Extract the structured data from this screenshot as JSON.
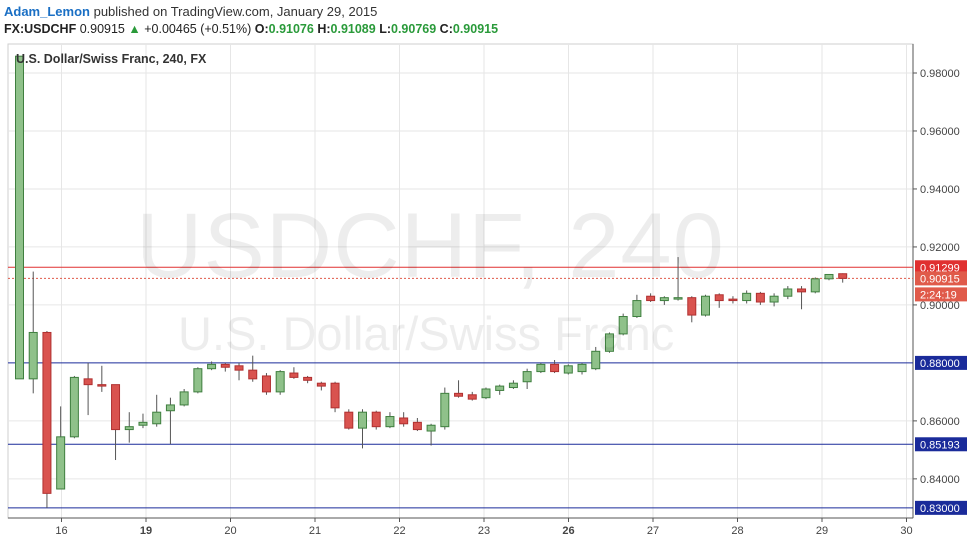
{
  "header": {
    "author": "Adam_Lemon",
    "published_text": "published on TradingView.com, January 29, 2015",
    "symbol": "FX:USDCHF",
    "last": "0.90915",
    "change_arrow": "▲",
    "change": "+0.00465 (+0.51%)",
    "o_label": "O:",
    "o_value": "0.91076",
    "h_label": "H:",
    "h_value": "0.91089",
    "l_label": "L:",
    "l_value": "0.90769",
    "c_label": "C:",
    "c_value": "0.90915"
  },
  "watermark": {
    "line1": "USDCHF, 240",
    "line2": "U.S. Dollar/Swiss Franc"
  },
  "chart_data": {
    "type": "candlestick",
    "legend": "U.S. Dollar/Swiss Franc, 240, FX",
    "ylim": [
      0.8265,
      0.99
    ],
    "y_ticks": [
      {
        "value": 0.98,
        "label": "0.98000"
      },
      {
        "value": 0.96,
        "label": "0.96000"
      },
      {
        "value": 0.94,
        "label": "0.94000"
      },
      {
        "value": 0.92,
        "label": "0.92000"
      },
      {
        "value": 0.9,
        "label": "0.90000"
      },
      {
        "value": 0.86,
        "label": "0.86000"
      },
      {
        "value": 0.84,
        "label": "0.84000"
      }
    ],
    "x_ticks": [
      {
        "label": "16",
        "bold": false
      },
      {
        "label": "19",
        "bold": true
      },
      {
        "label": "20",
        "bold": false
      },
      {
        "label": "21",
        "bold": false
      },
      {
        "label": "22",
        "bold": false
      },
      {
        "label": "23",
        "bold": false
      },
      {
        "label": "26",
        "bold": true
      },
      {
        "label": "27",
        "bold": false
      },
      {
        "label": "28",
        "bold": false
      },
      {
        "label": "29",
        "bold": false
      },
      {
        "label": "30",
        "bold": false
      }
    ],
    "horizontal_lines": [
      {
        "value": 0.91299,
        "label": "0.91299",
        "color": "#e03030"
      },
      {
        "value": 0.88,
        "label": "0.88000",
        "color": "#1a2b9a"
      },
      {
        "value": 0.85193,
        "label": "0.85193",
        "color": "#1a2b9a"
      },
      {
        "value": 0.83,
        "label": "0.83000",
        "color": "#1a2b9a"
      }
    ],
    "last_price": {
      "value": 0.90915,
      "label": "0.90915",
      "color": "#e05a4a"
    },
    "countdown": "2:24:19",
    "colors": {
      "up": "#6aa84f",
      "down": "#d9534f",
      "up_fill": "#8fc18a",
      "down_fill": "#d9534f",
      "grid": "#e6e6e6",
      "axis": "#555555"
    },
    "candles": [
      {
        "o": 0.8745,
        "h": 0.9858,
        "l": 0.8745,
        "c": 0.9858
      },
      {
        "o": 0.8745,
        "h": 0.9115,
        "l": 0.8695,
        "c": 0.8905
      },
      {
        "o": 0.8905,
        "h": 0.891,
        "l": 0.83,
        "c": 0.835
      },
      {
        "o": 0.8365,
        "h": 0.865,
        "l": 0.8365,
        "c": 0.8545
      },
      {
        "o": 0.8545,
        "h": 0.8755,
        "l": 0.854,
        "c": 0.875
      },
      {
        "o": 0.8745,
        "h": 0.88,
        "l": 0.862,
        "c": 0.8725
      },
      {
        "o": 0.8725,
        "h": 0.879,
        "l": 0.87,
        "c": 0.872
      },
      {
        "o": 0.8725,
        "h": 0.8725,
        "l": 0.8465,
        "c": 0.857
      },
      {
        "o": 0.857,
        "h": 0.863,
        "l": 0.8525,
        "c": 0.858
      },
      {
        "o": 0.8585,
        "h": 0.8625,
        "l": 0.8575,
        "c": 0.8595
      },
      {
        "o": 0.859,
        "h": 0.869,
        "l": 0.858,
        "c": 0.863
      },
      {
        "o": 0.8635,
        "h": 0.868,
        "l": 0.852,
        "c": 0.8655
      },
      {
        "o": 0.8655,
        "h": 0.871,
        "l": 0.865,
        "c": 0.87
      },
      {
        "o": 0.87,
        "h": 0.8785,
        "l": 0.8695,
        "c": 0.878
      },
      {
        "o": 0.878,
        "h": 0.8805,
        "l": 0.8775,
        "c": 0.8795
      },
      {
        "o": 0.8795,
        "h": 0.88,
        "l": 0.877,
        "c": 0.8785
      },
      {
        "o": 0.879,
        "h": 0.88,
        "l": 0.874,
        "c": 0.8775
      },
      {
        "o": 0.8775,
        "h": 0.8825,
        "l": 0.8735,
        "c": 0.8745
      },
      {
        "o": 0.8755,
        "h": 0.8765,
        "l": 0.869,
        "c": 0.87
      },
      {
        "o": 0.87,
        "h": 0.8775,
        "l": 0.869,
        "c": 0.877
      },
      {
        "o": 0.8765,
        "h": 0.8785,
        "l": 0.8745,
        "c": 0.875
      },
      {
        "o": 0.875,
        "h": 0.8755,
        "l": 0.873,
        "c": 0.874
      },
      {
        "o": 0.873,
        "h": 0.8735,
        "l": 0.8705,
        "c": 0.872
      },
      {
        "o": 0.873,
        "h": 0.8735,
        "l": 0.863,
        "c": 0.8645
      },
      {
        "o": 0.863,
        "h": 0.864,
        "l": 0.857,
        "c": 0.8575
      },
      {
        "o": 0.8575,
        "h": 0.864,
        "l": 0.8505,
        "c": 0.863
      },
      {
        "o": 0.863,
        "h": 0.8635,
        "l": 0.857,
        "c": 0.858
      },
      {
        "o": 0.858,
        "h": 0.863,
        "l": 0.8575,
        "c": 0.8615
      },
      {
        "o": 0.861,
        "h": 0.863,
        "l": 0.858,
        "c": 0.859
      },
      {
        "o": 0.8595,
        "h": 0.861,
        "l": 0.8565,
        "c": 0.857
      },
      {
        "o": 0.8565,
        "h": 0.859,
        "l": 0.8515,
        "c": 0.8585
      },
      {
        "o": 0.858,
        "h": 0.8715,
        "l": 0.857,
        "c": 0.8695
      },
      {
        "o": 0.8695,
        "h": 0.874,
        "l": 0.868,
        "c": 0.8685
      },
      {
        "o": 0.869,
        "h": 0.87,
        "l": 0.867,
        "c": 0.8675
      },
      {
        "o": 0.868,
        "h": 0.8715,
        "l": 0.8675,
        "c": 0.871
      },
      {
        "o": 0.8705,
        "h": 0.8725,
        "l": 0.869,
        "c": 0.872
      },
      {
        "o": 0.8715,
        "h": 0.874,
        "l": 0.871,
        "c": 0.873
      },
      {
        "o": 0.8735,
        "h": 0.878,
        "l": 0.871,
        "c": 0.877
      },
      {
        "o": 0.877,
        "h": 0.88,
        "l": 0.8765,
        "c": 0.8795
      },
      {
        "o": 0.8795,
        "h": 0.881,
        "l": 0.8765,
        "c": 0.877
      },
      {
        "o": 0.8765,
        "h": 0.8795,
        "l": 0.876,
        "c": 0.879
      },
      {
        "o": 0.877,
        "h": 0.88,
        "l": 0.876,
        "c": 0.8795
      },
      {
        "o": 0.878,
        "h": 0.8855,
        "l": 0.8775,
        "c": 0.884
      },
      {
        "o": 0.884,
        "h": 0.8905,
        "l": 0.8835,
        "c": 0.89
      },
      {
        "o": 0.89,
        "h": 0.897,
        "l": 0.8895,
        "c": 0.896
      },
      {
        "o": 0.896,
        "h": 0.9035,
        "l": 0.8955,
        "c": 0.9015
      },
      {
        "o": 0.903,
        "h": 0.904,
        "l": 0.901,
        "c": 0.9015
      },
      {
        "o": 0.9015,
        "h": 0.903,
        "l": 0.9,
        "c": 0.9025
      },
      {
        "o": 0.902,
        "h": 0.9165,
        "l": 0.9015,
        "c": 0.9025
      },
      {
        "o": 0.9025,
        "h": 0.903,
        "l": 0.894,
        "c": 0.8965
      },
      {
        "o": 0.8965,
        "h": 0.9035,
        "l": 0.896,
        "c": 0.903
      },
      {
        "o": 0.9035,
        "h": 0.904,
        "l": 0.899,
        "c": 0.9015
      },
      {
        "o": 0.902,
        "h": 0.903,
        "l": 0.9005,
        "c": 0.9015
      },
      {
        "o": 0.9015,
        "h": 0.905,
        "l": 0.9005,
        "c": 0.904
      },
      {
        "o": 0.904,
        "h": 0.9045,
        "l": 0.9,
        "c": 0.901
      },
      {
        "o": 0.901,
        "h": 0.904,
        "l": 0.8995,
        "c": 0.903
      },
      {
        "o": 0.903,
        "h": 0.9065,
        "l": 0.902,
        "c": 0.9055
      },
      {
        "o": 0.9055,
        "h": 0.9065,
        "l": 0.8985,
        "c": 0.9045
      },
      {
        "o": 0.9045,
        "h": 0.9095,
        "l": 0.904,
        "c": 0.909
      },
      {
        "o": 0.909,
        "h": 0.9105,
        "l": 0.9085,
        "c": 0.9105
      },
      {
        "o": 0.91076,
        "h": 0.91089,
        "l": 0.90769,
        "c": 0.90915
      }
    ]
  }
}
